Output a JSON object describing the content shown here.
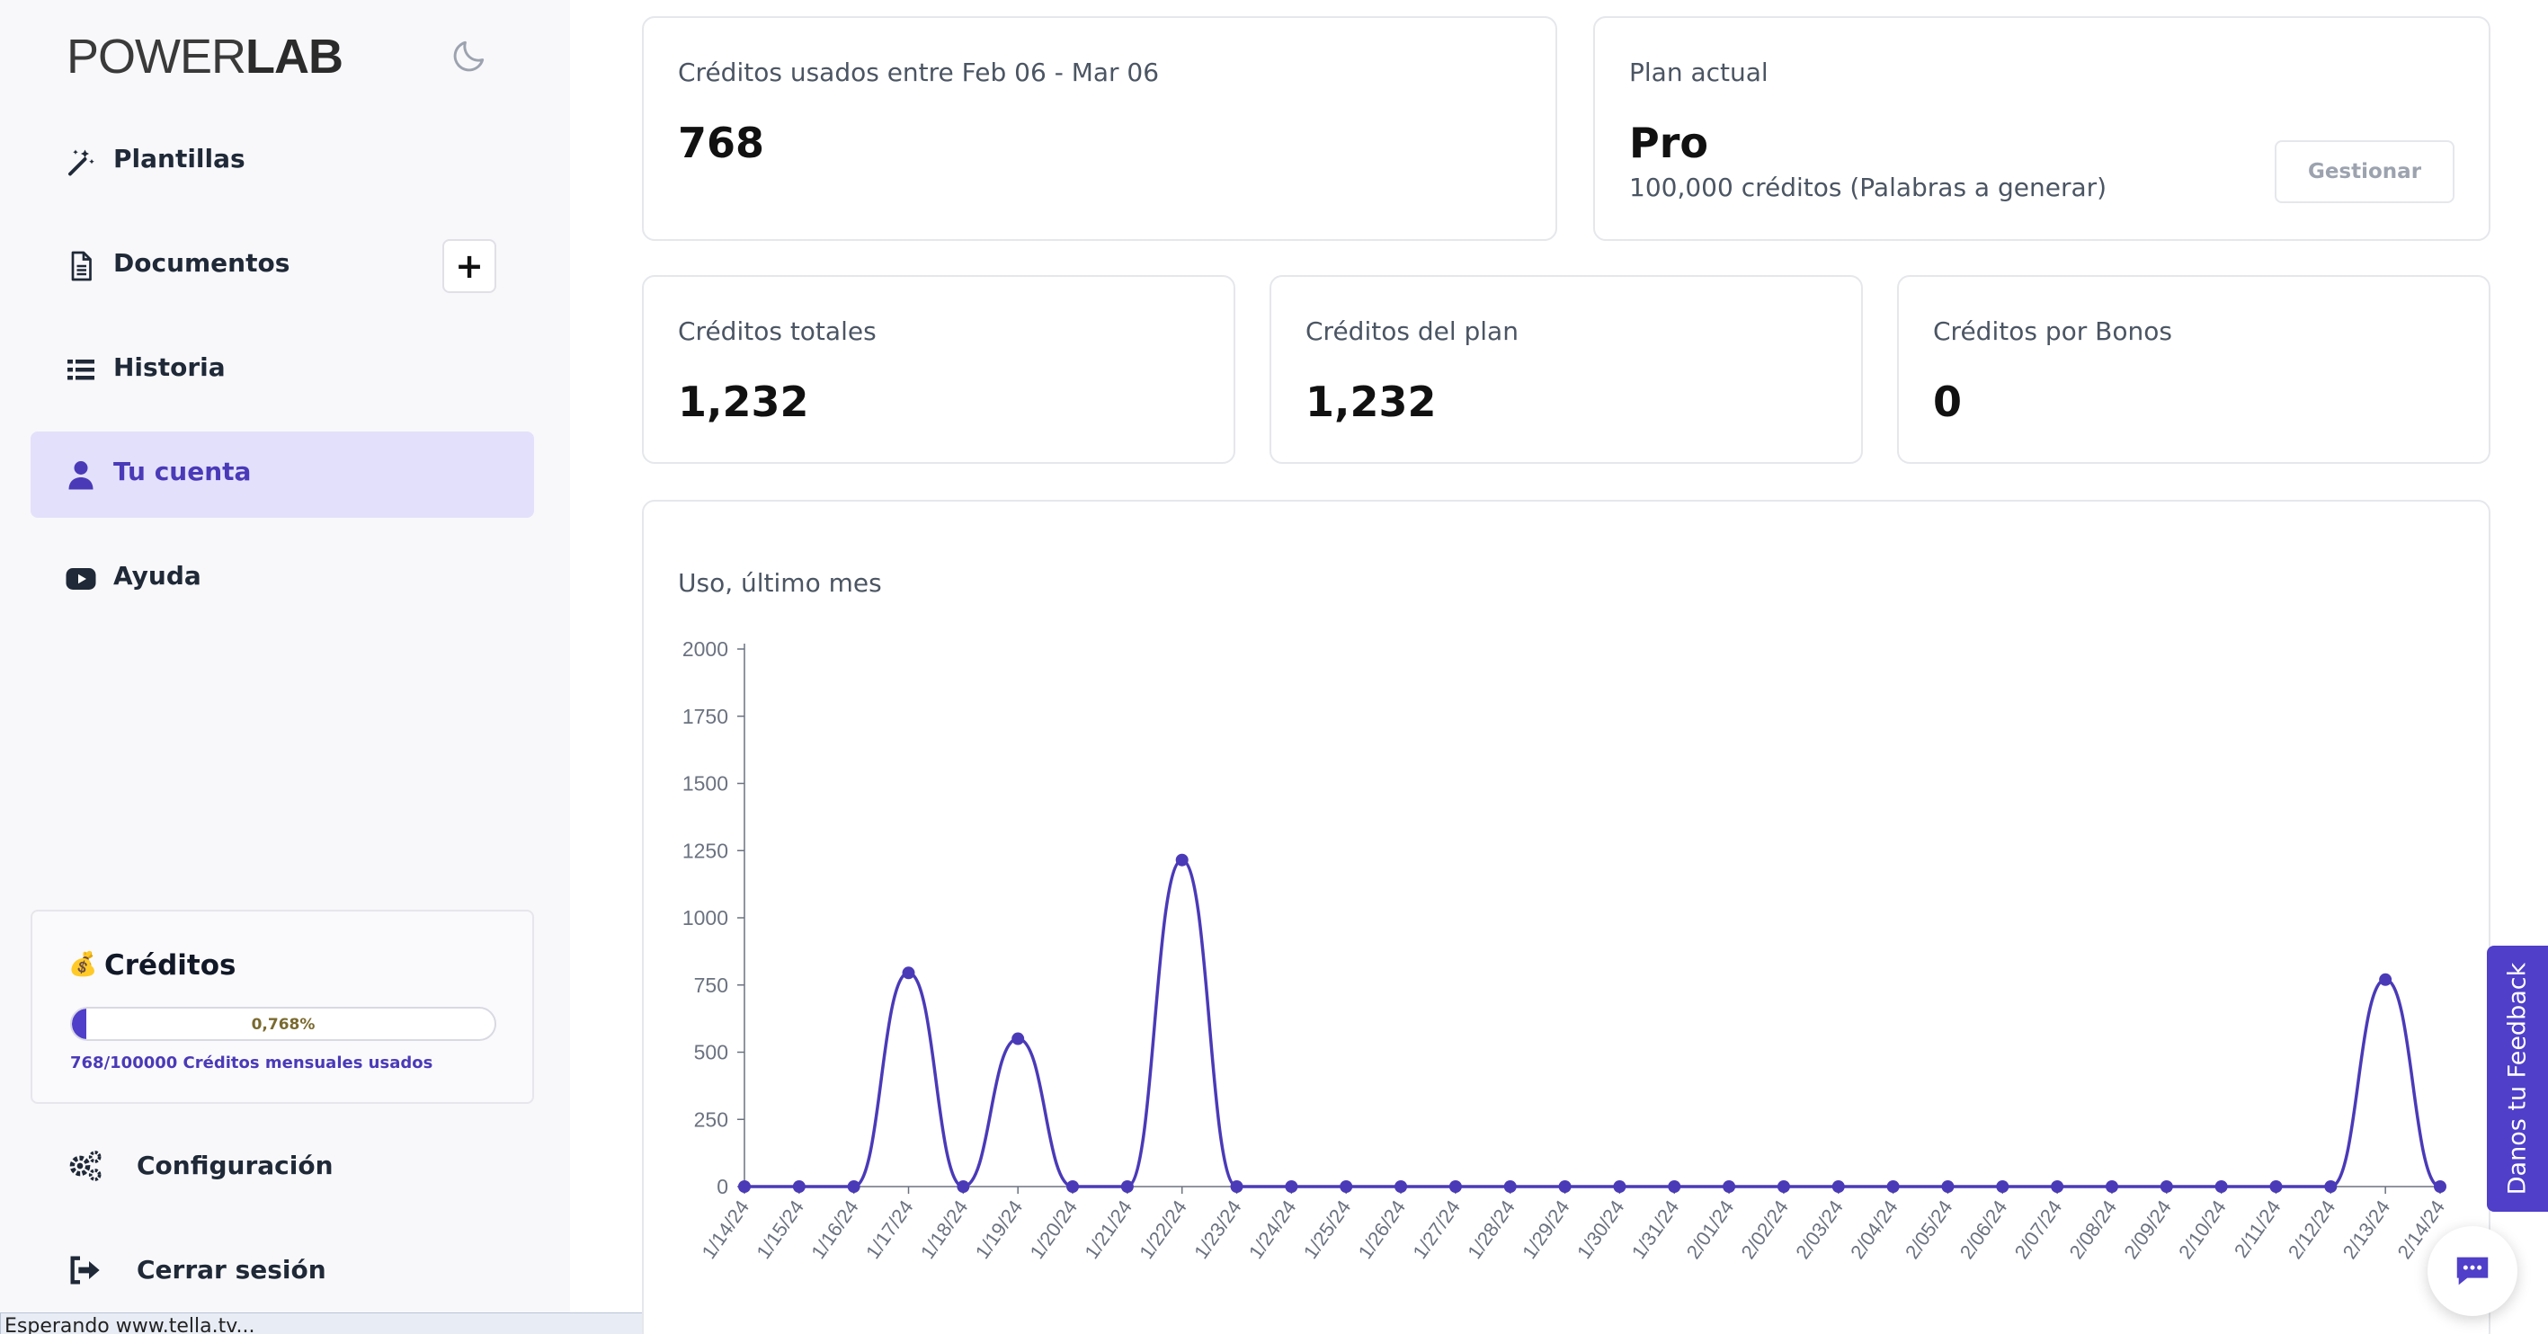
{
  "app": {
    "logo_part1": "POWER",
    "logo_part2": "LAB"
  },
  "sidebar": {
    "items": [
      {
        "label": "Plantillas",
        "icon": "magic-wand-icon"
      },
      {
        "label": "Documentos",
        "icon": "document-icon"
      },
      {
        "label": "Historia",
        "icon": "list-icon"
      },
      {
        "label": "Tu cuenta",
        "icon": "user-icon",
        "active": true
      },
      {
        "label": "Ayuda",
        "icon": "youtube-icon"
      }
    ],
    "add_document_label": "+",
    "credits": {
      "icon": "money-bag-icon",
      "title": "Créditos",
      "percent_label": "0,768%",
      "percent": 0.768,
      "used_label": "768/100000 Créditos mensuales usados"
    },
    "bottom": [
      {
        "label": "Configuración",
        "icon": "gears-icon"
      },
      {
        "label": "Cerrar sesión",
        "icon": "sign-out-icon"
      }
    ]
  },
  "status_bar": {
    "text": "Esperando www.tella.tv..."
  },
  "cards": {
    "used": {
      "title": "Créditos usados entre Feb 06 - Mar 06",
      "value": "768"
    },
    "plan": {
      "title": "Plan actual",
      "value": "Pro",
      "subtitle": "100,000 créditos (Palabras a generar)",
      "button": "Gestionar"
    },
    "total": {
      "title": "Créditos totales",
      "value": "1,232"
    },
    "plan_credits": {
      "title": "Créditos del plan",
      "value": "1,232"
    },
    "bonus": {
      "title": "Créditos por Bonos",
      "value": "0"
    }
  },
  "chart_title": "Uso, último mes",
  "chart_data": {
    "type": "line",
    "title": "Uso, último mes",
    "xlabel": "",
    "ylabel": "",
    "ylim": [
      0,
      2000
    ],
    "yticks": [
      0,
      250,
      500,
      750,
      1000,
      1250,
      1500,
      1750,
      2000
    ],
    "grid": false,
    "color": "#4a3ab8",
    "x": [
      "1/14/24",
      "1/15/24",
      "1/16/24",
      "1/17/24",
      "1/18/24",
      "1/19/24",
      "1/20/24",
      "1/21/24",
      "1/22/24",
      "1/23/24",
      "1/24/24",
      "1/25/24",
      "1/26/24",
      "1/27/24",
      "1/28/24",
      "1/29/24",
      "1/30/24",
      "1/31/24",
      "2/01/24",
      "2/02/24",
      "2/03/24",
      "2/04/24",
      "2/05/24",
      "2/06/24",
      "2/07/24",
      "2/08/24",
      "2/09/24",
      "2/10/24",
      "2/11/24",
      "2/12/24",
      "2/13/24",
      "2/14/24"
    ],
    "values": [
      0,
      0,
      0,
      795,
      0,
      550,
      0,
      0,
      1215,
      0,
      0,
      0,
      0,
      0,
      0,
      0,
      0,
      0,
      0,
      0,
      0,
      0,
      0,
      0,
      0,
      0,
      0,
      0,
      0,
      0,
      770,
      0
    ]
  },
  "feedback_label": "Danos tu Feedback",
  "chat_icon": "chat-icon"
}
